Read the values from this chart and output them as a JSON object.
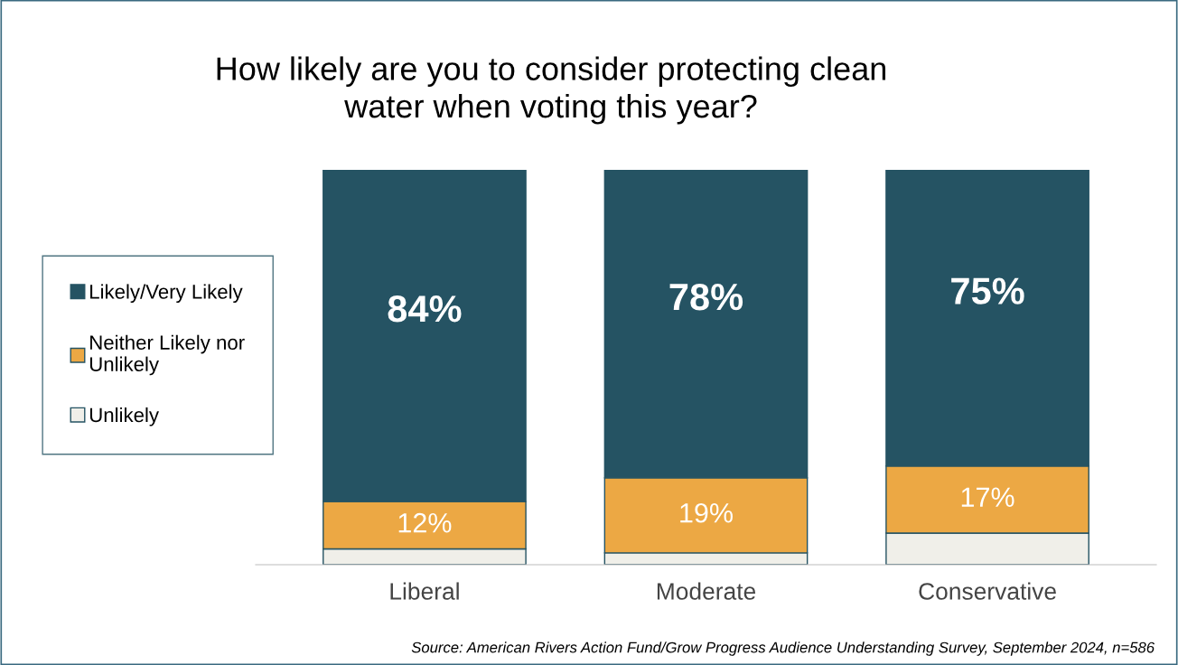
{
  "chart_data": {
    "type": "bar",
    "title": "How likely are you to consider protecting clean\nwater when voting this year?",
    "categories": [
      "Liberal",
      "Moderate",
      "Conservative"
    ],
    "stacked": true,
    "ylim": [
      0,
      100
    ],
    "legend": "left",
    "grid": false,
    "tick_labels": "x",
    "series": [
      {
        "name": "Unlikely",
        "color": "#f0efe9",
        "values": [
          4,
          3,
          8
        ],
        "value_labels": [
          null,
          null,
          null
        ]
      },
      {
        "name": "Neither Likely nor\nUnlikely",
        "color": "#eca844",
        "values": [
          12,
          19,
          17
        ],
        "value_labels": [
          "12%",
          "19%",
          "17%"
        ]
      },
      {
        "name": "Likely/Very Likely",
        "color": "#255363",
        "values": [
          84,
          78,
          75
        ],
        "value_labels": [
          "84%",
          "78%",
          "75%"
        ]
      }
    ],
    "annotations": [
      "Source: American Rivers Action Fund/Grow Progress Audience Understanding Survey, September 2024, n=586"
    ]
  }
}
